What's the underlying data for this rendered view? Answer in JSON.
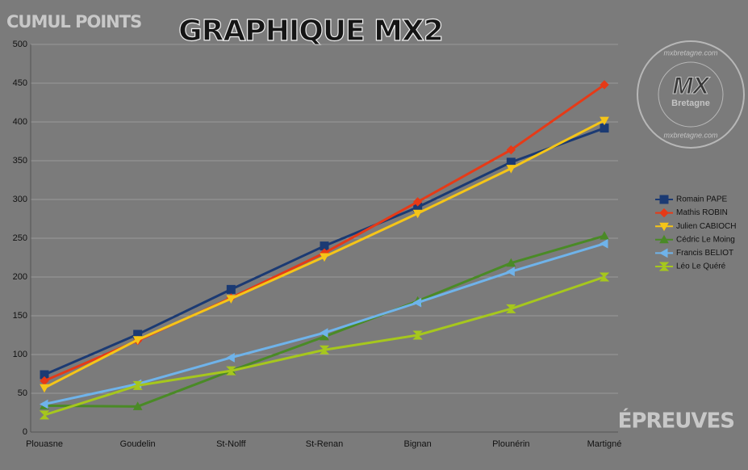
{
  "chart_data": {
    "type": "line",
    "title": "GRAPHIQUE MX2",
    "y_label": "CUMUL POINTS",
    "x_label": "ÉPREUVES",
    "categories": [
      "Plouasne",
      "Goudelin",
      "St-Nolff",
      "St-Renan",
      "Bignan",
      "Plounérin",
      "Martigné"
    ],
    "series": [
      {
        "name": "Romain PAPE",
        "color": "#1b3a73",
        "marker": "square",
        "values": [
          74,
          126,
          184,
          240,
          290,
          348,
          392
        ]
      },
      {
        "name": "Mathis ROBIN",
        "color": "#e63a17",
        "marker": "diamond",
        "values": [
          66,
          118,
          173,
          231,
          297,
          364,
          448
        ]
      },
      {
        "name": "Julien CABIOCH",
        "color": "#f5c518",
        "marker": "triangle-down",
        "values": [
          57,
          119,
          172,
          226,
          282,
          340,
          402
        ]
      },
      {
        "name": "Cédric Le Moing",
        "color": "#4a8a26",
        "marker": "triangle-up",
        "values": [
          34,
          33,
          79,
          123,
          169,
          218,
          253
        ]
      },
      {
        "name": "Francis BELIOT",
        "color": "#6fb3ea",
        "marker": "triangle-left",
        "values": [
          36,
          62,
          96,
          128,
          167,
          207,
          243
        ]
      },
      {
        "name": "Léo Le Quéré",
        "color": "#a6c71d",
        "marker": "hourglass",
        "values": [
          22,
          60,
          79,
          106,
          125,
          159,
          200
        ]
      }
    ],
    "ylim": [
      0,
      500
    ],
    "yticks": [
      0,
      50,
      100,
      150,
      200,
      250,
      300,
      350,
      400,
      450,
      500
    ],
    "grid": true,
    "legend": "right"
  },
  "watermark": {
    "logo": "MX",
    "logo_sub": "Bretagne",
    "site": "mxbretagne.com"
  }
}
